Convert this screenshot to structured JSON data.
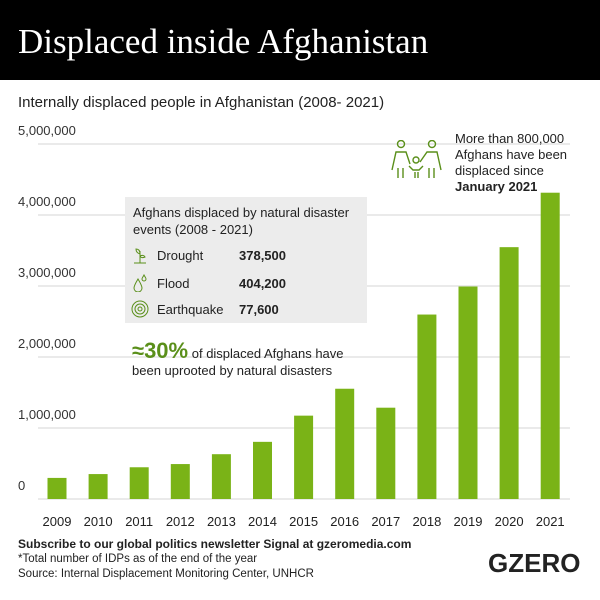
{
  "header": {
    "title": "Displaced inside Afghanistan"
  },
  "subtitle": "Internally displaced people in Afghanistan (2008- 2021)",
  "chart_data": {
    "type": "bar",
    "title": "Internally displaced people in Afghanistan (2008- 2021)",
    "categories": [
      "2009",
      "2010",
      "2011",
      "2012",
      "2013",
      "2014",
      "2015",
      "2016",
      "2017",
      "2018",
      "2019",
      "2020",
      "2021"
    ],
    "values": [
      297000,
      351000,
      447000,
      492000,
      631000,
      805000,
      1174000,
      1553000,
      1286000,
      2598000,
      2993000,
      3547000,
      4314000
    ],
    "ylim": [
      0,
      5000000
    ],
    "yticks": [
      "0",
      "1,000,000",
      "2,000,000",
      "3,000,000",
      "4,000,000",
      "5,000,000"
    ],
    "grid": true,
    "color": "#7ab317"
  },
  "disaster_box": {
    "title": "Afghans displaced by natural disaster events (2008 - 2021)",
    "rows": [
      {
        "icon": "drought-plant-icon",
        "label": "Drought",
        "value": "378,500"
      },
      {
        "icon": "flood-drop-icon",
        "label": "Flood",
        "value": "404,200"
      },
      {
        "icon": "earthquake-rings-icon",
        "label": "Earthquake",
        "value": "77,600"
      }
    ]
  },
  "note": {
    "percent": "≈30%",
    "text": "of displaced Afghans have been uprooted by natural disasters"
  },
  "top_note": {
    "text": "More than 800,000 Afghans have been displaced since",
    "bold": "January 2021",
    "icon": "family-icon"
  },
  "footer": {
    "subscribe": "Subscribe to our global politics newsletter Signal at gzeromedia.com",
    "footnote": "*Total number of IDPs as of the end of the year",
    "source": "Source: Internal Displacement Monitoring Center, UNHCR"
  },
  "logo": "GZERO"
}
